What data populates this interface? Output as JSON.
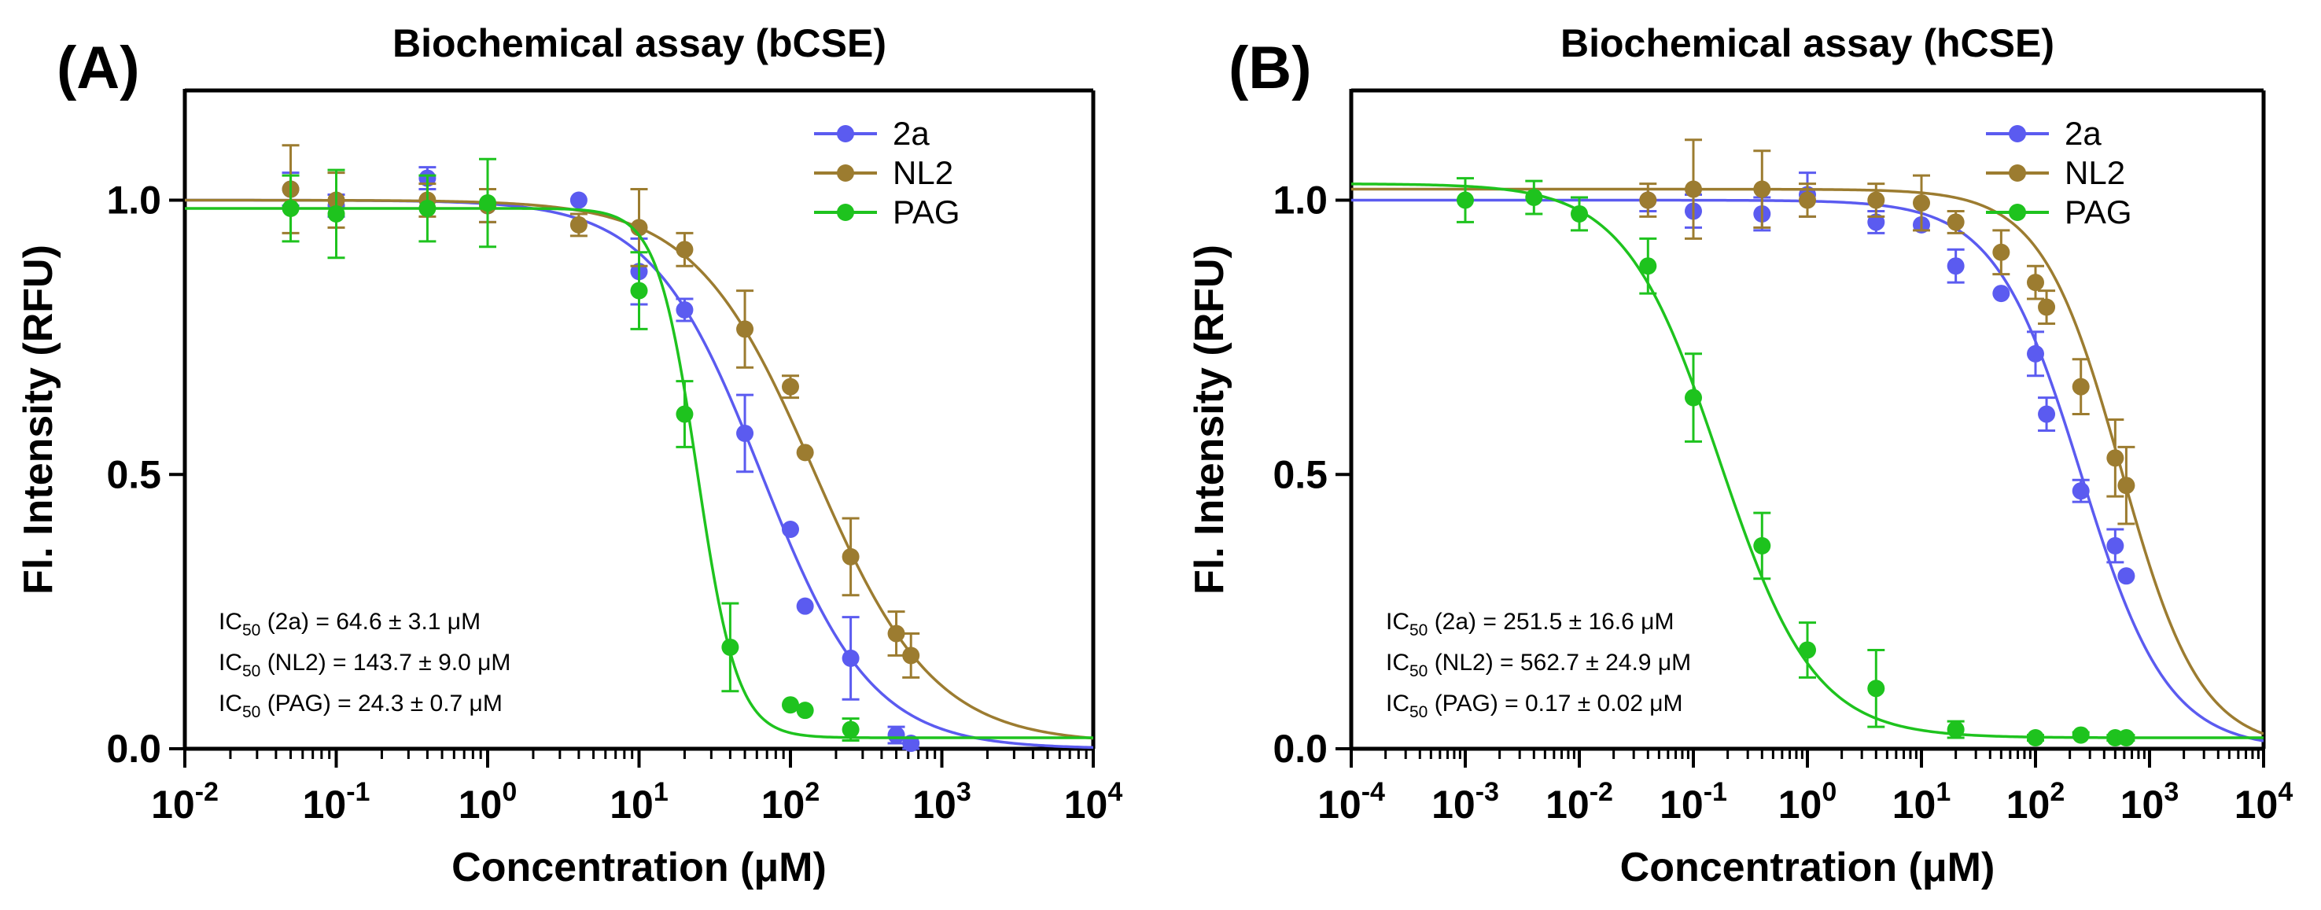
{
  "figure": "Concentration-response curves",
  "chart_data": [
    {
      "type": "line",
      "panel_label": "(A)",
      "title": "Biochemical assay (bCSE)",
      "xlabel": "Concentration (μM)",
      "ylabel": "Fl. Intensity (RFU)",
      "xscale": "log10",
      "xlim_exponents": [
        -2,
        4
      ],
      "ylim": [
        0,
        1.2
      ],
      "x_ticks": [
        {
          "base": "10",
          "exp": "-2",
          "value": 0.01
        },
        {
          "base": "10",
          "exp": "-1",
          "value": 0.1
        },
        {
          "base": "10",
          "exp": "0",
          "value": 1
        },
        {
          "base": "10",
          "exp": "1",
          "value": 10
        },
        {
          "base": "10",
          "exp": "2",
          "value": 100
        },
        {
          "base": "10",
          "exp": "3",
          "value": 1000
        },
        {
          "base": "10",
          "exp": "4",
          "value": 10000
        }
      ],
      "y_ticks": [
        {
          "label": "0.0",
          "value": 0
        },
        {
          "label": "0.5",
          "value": 0.5
        },
        {
          "label": "1.0",
          "value": 1.0
        }
      ],
      "legend_position": "top-right",
      "series": [
        {
          "name": "2a",
          "color": "#5b5bf0",
          "fit": {
            "top": 1.0,
            "bottom": 0.0,
            "ic50": 64.6,
            "hill": 1.2
          },
          "x": [
            0.05,
            0.1,
            0.4,
            1,
            4,
            10,
            20,
            50,
            100,
            125,
            250,
            500,
            625
          ],
          "y": [
            1.02,
            0.99,
            1.04,
            0.99,
            1.0,
            0.87,
            0.8,
            0.575,
            0.4,
            0.26,
            0.165,
            0.025,
            0.01
          ],
          "err": [
            0.03,
            0.02,
            0.02,
            0.03,
            0,
            0.06,
            0.02,
            0.07,
            0,
            0,
            0.075,
            0.015,
            0.01
          ]
        },
        {
          "name": "NL2",
          "color": "#9c7c30",
          "fit": {
            "top": 1.0,
            "bottom": 0.01,
            "ic50": 143.7,
            "hill": 1.1
          },
          "x": [
            0.05,
            0.1,
            0.4,
            1,
            4,
            10,
            20,
            50,
            100,
            125,
            250,
            500,
            625
          ],
          "y": [
            1.02,
            1.0,
            1.0,
            0.99,
            0.955,
            0.95,
            0.91,
            0.765,
            0.66,
            0.54,
            0.35,
            0.21,
            0.17
          ],
          "err": [
            0.08,
            0.05,
            0.03,
            0.03,
            0.02,
            0.07,
            0.03,
            0.07,
            0.02,
            0,
            0.07,
            0.04,
            0.04
          ]
        },
        {
          "name": "PAG",
          "color": "#1ec31e",
          "fit": {
            "top": 0.985,
            "bottom": 0.02,
            "ic50": 24.3,
            "hill": 3.3
          },
          "x": [
            0.05,
            0.1,
            0.4,
            1,
            10,
            20,
            40,
            100,
            125,
            250
          ],
          "y": [
            0.985,
            0.975,
            0.985,
            0.995,
            0.835,
            0.61,
            0.185,
            0.08,
            0.07,
            0.035
          ],
          "err": [
            0.06,
            0.08,
            0.06,
            0.08,
            0.07,
            0.06,
            0.08,
            0,
            0,
            0.02
          ]
        }
      ],
      "annotations": [
        {
          "pre": "IC",
          "sub": "50",
          "post": " (2a) = 64.6 ± 3.1 μM"
        },
        {
          "pre": "IC",
          "sub": "50",
          "post": " (NL2)  = 143.7 ± 9.0 μM"
        },
        {
          "pre": "IC",
          "sub": "50",
          "post": " (PAG) = 24.3 ± 0.7 μM"
        }
      ]
    },
    {
      "type": "line",
      "panel_label": "(B)",
      "title": "Biochemical assay (hCSE)",
      "xlabel": "Concentration (μM)",
      "ylabel": "Fl. Intensity (RFU)",
      "xscale": "log10",
      "xlim_exponents": [
        -4,
        4
      ],
      "ylim": [
        0,
        1.2
      ],
      "x_ticks": [
        {
          "base": "10",
          "exp": "-4",
          "value": 0.0001
        },
        {
          "base": "10",
          "exp": "-3",
          "value": 0.001
        },
        {
          "base": "10",
          "exp": "-2",
          "value": 0.01
        },
        {
          "base": "10",
          "exp": "-1",
          "value": 0.1
        },
        {
          "base": "10",
          "exp": "0",
          "value": 1
        },
        {
          "base": "10",
          "exp": "1",
          "value": 10
        },
        {
          "base": "10",
          "exp": "2",
          "value": 100
        },
        {
          "base": "10",
          "exp": "3",
          "value": 1000
        },
        {
          "base": "10",
          "exp": "4",
          "value": 10000
        }
      ],
      "y_ticks": [
        {
          "label": "0.0",
          "value": 0
        },
        {
          "label": "0.5",
          "value": 0.5
        },
        {
          "label": "1.0",
          "value": 1.0
        }
      ],
      "legend_position": "top-right",
      "series": [
        {
          "name": "2a",
          "color": "#5b5bf0",
          "fit": {
            "top": 1.0,
            "bottom": 0.0,
            "ic50": 251.5,
            "hill": 1.15
          },
          "x": [
            0.04,
            0.1,
            0.4,
            1,
            4,
            10,
            20,
            50,
            100,
            125,
            250,
            500,
            625
          ],
          "y": [
            1.0,
            0.98,
            0.975,
            1.01,
            0.96,
            0.955,
            0.88,
            0.83,
            0.72,
            0.61,
            0.47,
            0.37,
            0.315
          ],
          "err": [
            0.02,
            0.03,
            0.03,
            0.04,
            0.02,
            0,
            0.03,
            0,
            0.04,
            0.03,
            0.02,
            0.03,
            0
          ]
        },
        {
          "name": "NL2",
          "color": "#9c7c30",
          "fit": {
            "top": 1.02,
            "bottom": 0.0,
            "ic50": 562.7,
            "hill": 1.25
          },
          "x": [
            0.04,
            0.1,
            0.4,
            1,
            4,
            10,
            20,
            50,
            100,
            125,
            250,
            500,
            625
          ],
          "y": [
            1.0,
            1.02,
            1.02,
            1.0,
            1.0,
            0.995,
            0.96,
            0.905,
            0.85,
            0.805,
            0.66,
            0.53,
            0.48
          ],
          "err": [
            0.03,
            0.09,
            0.07,
            0.03,
            0.03,
            0.05,
            0.02,
            0.04,
            0.03,
            0.03,
            0.05,
            0.07,
            0.07
          ]
        },
        {
          "name": "PAG",
          "color": "#1ec31e",
          "fit": {
            "top": 1.03,
            "bottom": 0.02,
            "ic50": 0.17,
            "hill": 1.05
          },
          "x": [
            0.001,
            0.004,
            0.01,
            0.04,
            0.1,
            0.4,
            1,
            4,
            20,
            100,
            250,
            500,
            625
          ],
          "y": [
            1.0,
            1.005,
            0.975,
            0.88,
            0.64,
            0.37,
            0.18,
            0.11,
            0.035,
            0.02,
            0.025,
            0.02,
            0.02
          ],
          "err": [
            0.04,
            0.03,
            0.03,
            0.05,
            0.08,
            0.06,
            0.05,
            0.07,
            0.015,
            0.005,
            0.005,
            0.005,
            0.005
          ]
        }
      ],
      "annotations": [
        {
          "pre": "IC",
          "sub": "50",
          "post": " (2a) = 251.5 ± 16.6 μM"
        },
        {
          "pre": "IC",
          "sub": "50",
          "post": " (NL2)  = 562.7 ± 24.9 μM"
        },
        {
          "pre": "IC",
          "sub": "50",
          "post": " (PAG) = 0.17 ± 0.02 μM"
        }
      ]
    }
  ]
}
